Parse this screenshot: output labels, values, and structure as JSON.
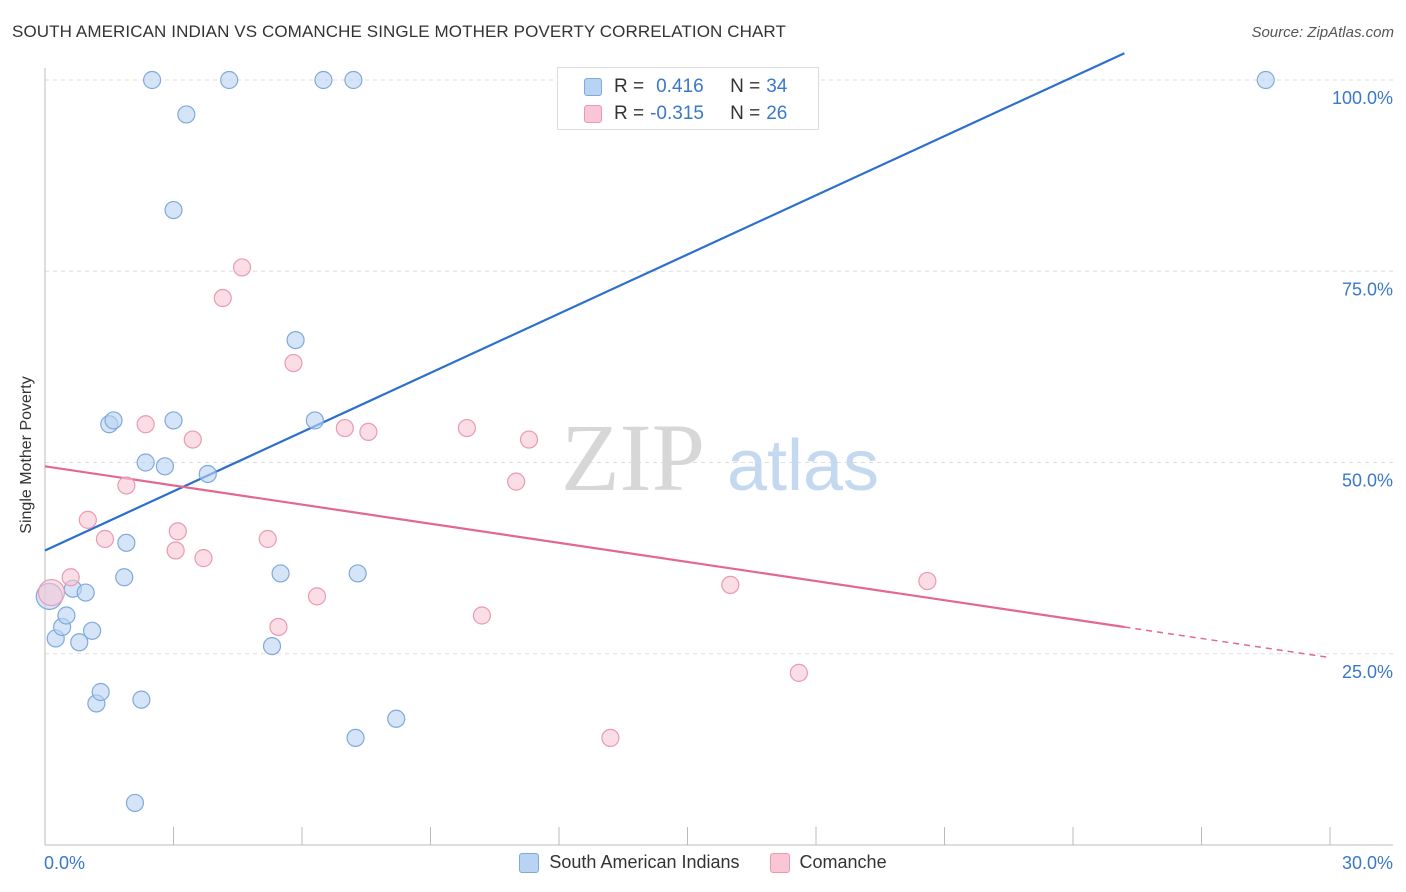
{
  "header": {
    "title": "SOUTH AMERICAN INDIAN VS COMANCHE SINGLE MOTHER POVERTY CORRELATION CHART",
    "source": "Source: ZipAtlas.com"
  },
  "watermark": {
    "zip": "ZIP",
    "atlas": "atlas"
  },
  "legend_top": {
    "rows": [
      {
        "r_label": "R = ",
        "r_value": "0.416",
        "n_label": "N = ",
        "n_value": "34"
      },
      {
        "r_label": "R = ",
        "r_value": "-0.315",
        "n_label": "N = ",
        "n_value": "26"
      }
    ]
  },
  "legend_bottom": {
    "items": [
      {
        "label": "South American Indians"
      },
      {
        "label": "Comanche"
      }
    ]
  },
  "colors": {
    "blue_fill": "#b9d3f2",
    "blue_stroke": "#7fa9dc",
    "blue_line": "#2d6fcc",
    "pink_fill": "#f8c6d5",
    "pink_stroke": "#e99ab2",
    "pink_line": "#e3688f",
    "axis_text": "#3a78c8",
    "grid": "#dddddd"
  },
  "chart_data": {
    "type": "scatter",
    "title": "SOUTH AMERICAN INDIAN VS COMANCHE SINGLE MOTHER POVERTY CORRELATION CHART",
    "xlabel": "",
    "ylabel": "Single Mother Poverty",
    "xlim": [
      0,
      30
    ],
    "ylim": [
      0,
      100
    ],
    "x_tick_labels": [
      "0.0%",
      "30.0%"
    ],
    "y_tick_labels": [
      "100.0%",
      "75.0%",
      "50.0%",
      "25.0%"
    ],
    "y_ticks": [
      100,
      75,
      50,
      25
    ],
    "grid": true,
    "legend_position": "top-center",
    "series": [
      {
        "name": "South American Indians",
        "color": "#7fa9dc",
        "points": [
          [
            0.1,
            32.5
          ],
          [
            0.25,
            27
          ],
          [
            0.4,
            28.5
          ],
          [
            0.5,
            30
          ],
          [
            0.65,
            33.5
          ],
          [
            0.8,
            26.5
          ],
          [
            0.95,
            33
          ],
          [
            1.1,
            28
          ],
          [
            1.2,
            18.5
          ],
          [
            1.3,
            20
          ],
          [
            1.5,
            55
          ],
          [
            1.6,
            55.5
          ],
          [
            1.9,
            39.5
          ],
          [
            1.85,
            35
          ],
          [
            2.1,
            5.5
          ],
          [
            2.25,
            19
          ],
          [
            2.35,
            50
          ],
          [
            2.5,
            100
          ],
          [
            2.8,
            49.5
          ],
          [
            3.0,
            55.5
          ],
          [
            3.0,
            83
          ],
          [
            3.3,
            95.5
          ],
          [
            3.8,
            48.5
          ],
          [
            4.3,
            100
          ],
          [
            5.3,
            26
          ],
          [
            5.5,
            35.5
          ],
          [
            5.85,
            66
          ],
          [
            6.3,
            55.5
          ],
          [
            6.5,
            100
          ],
          [
            7.2,
            100
          ],
          [
            7.3,
            35.5
          ],
          [
            7.25,
            14
          ],
          [
            8.2,
            16.5
          ],
          [
            28.5,
            100
          ]
        ]
      },
      {
        "name": "Comanche",
        "color": "#e99ab2",
        "points": [
          [
            0.15,
            33
          ],
          [
            0.6,
            35
          ],
          [
            1.0,
            42.5
          ],
          [
            1.4,
            40
          ],
          [
            1.9,
            47
          ],
          [
            2.35,
            55
          ],
          [
            3.1,
            41
          ],
          [
            3.05,
            38.5
          ],
          [
            3.45,
            53
          ],
          [
            3.7,
            37.5
          ],
          [
            4.15,
            71.5
          ],
          [
            4.6,
            75.5
          ],
          [
            5.2,
            40
          ],
          [
            5.45,
            28.5
          ],
          [
            5.8,
            63
          ],
          [
            6.35,
            32.5
          ],
          [
            7.0,
            54.5
          ],
          [
            7.55,
            54
          ],
          [
            9.85,
            54.5
          ],
          [
            10.2,
            30
          ],
          [
            11.0,
            47.5
          ],
          [
            11.3,
            53
          ],
          [
            13.2,
            14
          ],
          [
            16.0,
            34
          ],
          [
            17.6,
            22.5
          ],
          [
            20.6,
            34.5
          ]
        ]
      }
    ],
    "trend_lines": [
      {
        "series": "South American Indians",
        "from": [
          0,
          38.5
        ],
        "to": [
          25.2,
          103.5
        ]
      },
      {
        "series": "Comanche",
        "from": [
          0,
          49.5
        ],
        "to": [
          25.2,
          28.5
        ],
        "dashed_to": [
          30,
          24.5
        ]
      }
    ]
  }
}
